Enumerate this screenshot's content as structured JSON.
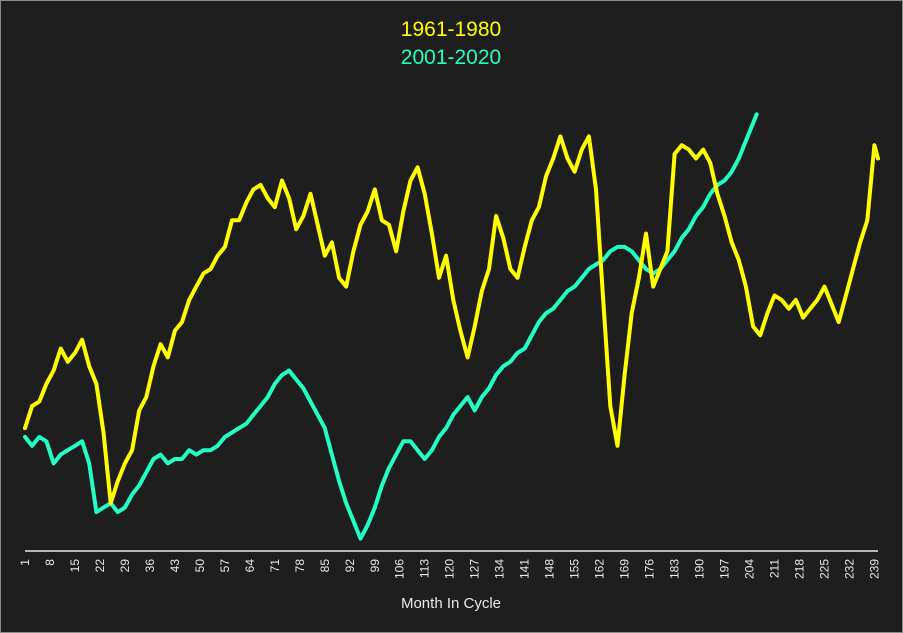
{
  "chart_data": {
    "type": "line",
    "title": "",
    "xlabel": "Month In Cycle",
    "ylabel": "",
    "x_tick_labels": [
      "1",
      "8",
      "15",
      "22",
      "29",
      "36",
      "43",
      "50",
      "57",
      "64",
      "71",
      "78",
      "85",
      "92",
      "99",
      "106",
      "113",
      "120",
      "127",
      "134",
      "141",
      "148",
      "155",
      "162",
      "169",
      "176",
      "183",
      "190",
      "197",
      "204",
      "211",
      "218",
      "225",
      "232",
      "239"
    ],
    "x_range": [
      1,
      240
    ],
    "y_range": [
      0,
      100
    ],
    "y_axis_labels_shown": false,
    "grid": false,
    "legend_position": "top-center",
    "series": [
      {
        "name": "1961-1980",
        "color": "#ffff00",
        "points": [
          [
            1,
            26
          ],
          [
            3,
            31
          ],
          [
            5,
            32
          ],
          [
            7,
            36
          ],
          [
            9,
            39
          ],
          [
            11,
            44
          ],
          [
            13,
            41
          ],
          [
            15,
            43
          ],
          [
            17,
            46
          ],
          [
            19,
            40
          ],
          [
            21,
            36
          ],
          [
            23,
            25
          ],
          [
            25,
            9
          ],
          [
            27,
            14
          ],
          [
            29,
            18
          ],
          [
            31,
            21
          ],
          [
            33,
            30
          ],
          [
            35,
            33
          ],
          [
            37,
            40
          ],
          [
            39,
            45
          ],
          [
            41,
            42
          ],
          [
            43,
            48
          ],
          [
            45,
            50
          ],
          [
            47,
            55
          ],
          [
            49,
            58
          ],
          [
            51,
            61
          ],
          [
            53,
            62
          ],
          [
            55,
            65
          ],
          [
            57,
            67
          ],
          [
            59,
            73
          ],
          [
            61,
            73
          ],
          [
            63,
            77
          ],
          [
            65,
            80
          ],
          [
            67,
            81
          ],
          [
            69,
            78
          ],
          [
            71,
            76
          ],
          [
            73,
            82
          ],
          [
            75,
            78
          ],
          [
            77,
            71
          ],
          [
            79,
            74
          ],
          [
            81,
            79
          ],
          [
            83,
            72
          ],
          [
            85,
            65
          ],
          [
            87,
            68
          ],
          [
            89,
            60
          ],
          [
            91,
            58
          ],
          [
            93,
            66
          ],
          [
            95,
            72
          ],
          [
            97,
            75
          ],
          [
            99,
            80
          ],
          [
            101,
            73
          ],
          [
            103,
            72
          ],
          [
            105,
            66
          ],
          [
            107,
            75
          ],
          [
            109,
            82
          ],
          [
            111,
            85
          ],
          [
            113,
            79
          ],
          [
            115,
            70
          ],
          [
            117,
            60
          ],
          [
            119,
            65
          ],
          [
            121,
            55
          ],
          [
            123,
            48
          ],
          [
            125,
            42
          ],
          [
            127,
            49
          ],
          [
            129,
            57
          ],
          [
            131,
            62
          ],
          [
            133,
            74
          ],
          [
            135,
            69
          ],
          [
            137,
            62
          ],
          [
            139,
            60
          ],
          [
            141,
            67
          ],
          [
            143,
            73
          ],
          [
            145,
            76
          ],
          [
            147,
            83
          ],
          [
            149,
            87
          ],
          [
            151,
            92
          ],
          [
            153,
            87
          ],
          [
            155,
            84
          ],
          [
            157,
            89
          ],
          [
            159,
            92
          ],
          [
            161,
            80
          ],
          [
            163,
            55
          ],
          [
            165,
            31
          ],
          [
            167,
            22
          ],
          [
            169,
            38
          ],
          [
            171,
            52
          ],
          [
            173,
            60
          ],
          [
            175,
            70
          ],
          [
            177,
            58
          ],
          [
            179,
            62
          ],
          [
            181,
            66
          ],
          [
            183,
            88
          ],
          [
            185,
            90
          ],
          [
            187,
            89
          ],
          [
            189,
            87
          ],
          [
            191,
            89
          ],
          [
            193,
            86
          ],
          [
            195,
            79
          ],
          [
            197,
            74
          ],
          [
            199,
            68
          ],
          [
            201,
            64
          ],
          [
            203,
            58
          ],
          [
            205,
            49
          ],
          [
            207,
            47
          ],
          [
            209,
            52
          ],
          [
            211,
            56
          ],
          [
            213,
            55
          ],
          [
            215,
            53
          ],
          [
            217,
            55
          ],
          [
            219,
            51
          ],
          [
            221,
            53
          ],
          [
            223,
            55
          ],
          [
            225,
            58
          ],
          [
            227,
            54
          ],
          [
            229,
            50
          ],
          [
            231,
            56
          ],
          [
            233,
            62
          ],
          [
            235,
            68
          ],
          [
            237,
            73
          ],
          [
            239,
            90
          ],
          [
            240,
            87
          ]
        ]
      },
      {
        "name": "2001-2020",
        "color": "#22ffc4",
        "points": [
          [
            1,
            24
          ],
          [
            3,
            22
          ],
          [
            5,
            24
          ],
          [
            7,
            23
          ],
          [
            9,
            18
          ],
          [
            11,
            20
          ],
          [
            13,
            21
          ],
          [
            15,
            22
          ],
          [
            17,
            23
          ],
          [
            19,
            18
          ],
          [
            21,
            7
          ],
          [
            23,
            8
          ],
          [
            25,
            9
          ],
          [
            27,
            7
          ],
          [
            29,
            8
          ],
          [
            31,
            11
          ],
          [
            33,
            13
          ],
          [
            35,
            16
          ],
          [
            37,
            19
          ],
          [
            39,
            20
          ],
          [
            41,
            18
          ],
          [
            43,
            19
          ],
          [
            45,
            19
          ],
          [
            47,
            21
          ],
          [
            49,
            20
          ],
          [
            51,
            21
          ],
          [
            53,
            21
          ],
          [
            55,
            22
          ],
          [
            57,
            24
          ],
          [
            59,
            25
          ],
          [
            61,
            26
          ],
          [
            63,
            27
          ],
          [
            65,
            29
          ],
          [
            67,
            31
          ],
          [
            69,
            33
          ],
          [
            71,
            36
          ],
          [
            73,
            38
          ],
          [
            75,
            39
          ],
          [
            77,
            37
          ],
          [
            79,
            35
          ],
          [
            81,
            32
          ],
          [
            83,
            29
          ],
          [
            85,
            26
          ],
          [
            87,
            20
          ],
          [
            89,
            14
          ],
          [
            91,
            9
          ],
          [
            93,
            5
          ],
          [
            95,
            1
          ],
          [
            97,
            4
          ],
          [
            99,
            8
          ],
          [
            101,
            13
          ],
          [
            103,
            17
          ],
          [
            105,
            20
          ],
          [
            107,
            23
          ],
          [
            109,
            23
          ],
          [
            111,
            21
          ],
          [
            113,
            19
          ],
          [
            115,
            21
          ],
          [
            117,
            24
          ],
          [
            119,
            26
          ],
          [
            121,
            29
          ],
          [
            123,
            31
          ],
          [
            125,
            33
          ],
          [
            127,
            30
          ],
          [
            129,
            33
          ],
          [
            131,
            35
          ],
          [
            133,
            38
          ],
          [
            135,
            40
          ],
          [
            137,
            41
          ],
          [
            139,
            43
          ],
          [
            141,
            44
          ],
          [
            143,
            47
          ],
          [
            145,
            50
          ],
          [
            147,
            52
          ],
          [
            149,
            53
          ],
          [
            151,
            55
          ],
          [
            153,
            57
          ],
          [
            155,
            58
          ],
          [
            157,
            60
          ],
          [
            159,
            62
          ],
          [
            161,
            63
          ],
          [
            163,
            64
          ],
          [
            165,
            66
          ],
          [
            167,
            67
          ],
          [
            169,
            67
          ],
          [
            171,
            66
          ],
          [
            173,
            64
          ],
          [
            175,
            62
          ],
          [
            177,
            61
          ],
          [
            179,
            62
          ],
          [
            181,
            64
          ],
          [
            183,
            66
          ],
          [
            185,
            69
          ],
          [
            187,
            71
          ],
          [
            189,
            74
          ],
          [
            191,
            76
          ],
          [
            193,
            79
          ],
          [
            195,
            81
          ],
          [
            197,
            82
          ],
          [
            199,
            84
          ],
          [
            201,
            87
          ],
          [
            203,
            91
          ],
          [
            205,
            95
          ],
          [
            206,
            97
          ]
        ]
      }
    ]
  }
}
